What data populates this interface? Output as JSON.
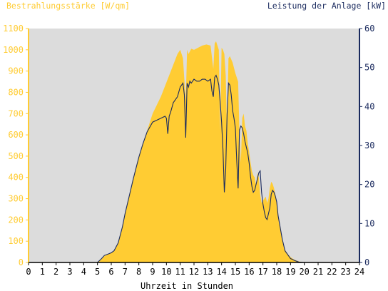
{
  "chart_data": {
    "type": "area",
    "left_axis_title": "Bestrahlungsstärke [W/qm]",
    "right_axis_title": "Leistung der Anlage [kW]",
    "xlabel": "Uhrzeit in Stunden",
    "xlim": [
      0,
      24
    ],
    "ylim_left": [
      0,
      1100
    ],
    "ylim_right": [
      0,
      60
    ],
    "x_ticks": [
      "0",
      "1",
      "2",
      "3",
      "4",
      "5",
      "6",
      "7",
      "8",
      "9",
      "10",
      "11",
      "12",
      "13",
      "14",
      "15",
      "16",
      "17",
      "18",
      "19",
      "20",
      "21",
      "22",
      "23",
      "24"
    ],
    "y_ticks_left": [
      "0",
      "100",
      "200",
      "300",
      "400",
      "500",
      "600",
      "700",
      "800",
      "900",
      "1000",
      "1100"
    ],
    "y_ticks_right": [
      "0",
      "10",
      "20",
      "30",
      "40",
      "50",
      "60"
    ],
    "grid": false,
    "colors": {
      "plot_background": "#dcdcdc",
      "irradiance_fill": "#ffcc33",
      "power_line": "#1a2a5e",
      "left_axis": "#ffcc33",
      "right_axis": "#1a2a5e"
    },
    "series": [
      {
        "axis": "left",
        "style": "area",
        "x": [
          0,
          5.0,
          5.3,
          5.5,
          5.8,
          6.0,
          6.2,
          6.5,
          6.8,
          7.0,
          7.3,
          7.6,
          8.0,
          8.3,
          8.6,
          9.0,
          9.3,
          9.6,
          9.9,
          10.2,
          10.5,
          10.8,
          11.0,
          11.2,
          11.4,
          11.5,
          11.6,
          11.8,
          12.0,
          12.3,
          12.6,
          12.9,
          13.2,
          13.4,
          13.5,
          13.6,
          13.7,
          13.8,
          13.9,
          14.0,
          14.1,
          14.2,
          14.3,
          14.4,
          14.5,
          14.6,
          14.8,
          15.0,
          15.2,
          15.3,
          15.4,
          15.5,
          15.6,
          15.7,
          15.8,
          15.9,
          16.0,
          16.1,
          16.2,
          16.3,
          16.4,
          16.5,
          16.6,
          16.7,
          16.8,
          16.9,
          17.0,
          17.1,
          17.2,
          17.3,
          17.4,
          17.5,
          17.6,
          17.7,
          17.8,
          17.9,
          18.0,
          18.1,
          18.2,
          18.3,
          18.4,
          18.5,
          18.6,
          18.8,
          19.0,
          19.3,
          19.6,
          20.0,
          20.3,
          20.5,
          24
        ],
        "values": [
          0,
          0,
          15,
          30,
          40,
          45,
          55,
          90,
          160,
          230,
          310,
          400,
          500,
          560,
          620,
          700,
          740,
          780,
          830,
          880,
          930,
          980,
          1000,
          960,
          760,
          1000,
          980,
          1005,
          1000,
          1010,
          1020,
          1025,
          1020,
          910,
          1030,
          1040,
          1020,
          1000,
          620,
          1010,
          1000,
          980,
          880,
          600,
          960,
          970,
          940,
          890,
          850,
          600,
          470,
          680,
          700,
          640,
          620,
          560,
          520,
          470,
          430,
          410,
          400,
          360,
          420,
          400,
          320,
          280,
          290,
          300,
          310,
          280,
          300,
          350,
          380,
          370,
          350,
          320,
          280,
          230,
          180,
          140,
          110,
          80,
          60,
          40,
          25,
          12,
          5,
          0,
          0,
          0,
          0
        ]
      },
      {
        "axis": "right",
        "style": "line",
        "x": [
          0,
          5.0,
          5.3,
          5.5,
          5.8,
          6.0,
          6.2,
          6.5,
          6.8,
          7.0,
          7.3,
          7.6,
          8.0,
          8.3,
          8.6,
          9.0,
          9.3,
          9.6,
          9.9,
          10.0,
          10.1,
          10.2,
          10.3,
          10.5,
          10.8,
          11.0,
          11.2,
          11.3,
          11.4,
          11.5,
          11.6,
          11.7,
          11.8,
          12.0,
          12.2,
          12.4,
          12.6,
          12.8,
          13.0,
          13.2,
          13.3,
          13.4,
          13.5,
          13.6,
          13.7,
          13.8,
          13.9,
          14.0,
          14.1,
          14.2,
          14.3,
          14.4,
          14.5,
          14.6,
          14.7,
          14.8,
          14.9,
          15.0,
          15.1,
          15.2,
          15.3,
          15.4,
          15.5,
          15.6,
          15.7,
          15.8,
          15.9,
          16.0,
          16.1,
          16.2,
          16.3,
          16.4,
          16.5,
          16.6,
          16.7,
          16.8,
          16.9,
          17.0,
          17.1,
          17.2,
          17.3,
          17.4,
          17.5,
          17.6,
          17.7,
          17.8,
          17.9,
          18.0,
          18.1,
          18.2,
          18.3,
          18.4,
          18.5,
          18.6,
          18.8,
          19.0,
          19.3,
          19.6,
          20.0,
          20.2,
          24
        ],
        "values": [
          0,
          0,
          1.0,
          1.8,
          2.2,
          2.5,
          3.0,
          5.0,
          9.0,
          12.5,
          17.0,
          21.5,
          27.0,
          30.5,
          33.5,
          36.0,
          36.5,
          37.0,
          37.5,
          37.0,
          33.0,
          37.5,
          38.5,
          41.0,
          42.5,
          45.0,
          46.0,
          43.0,
          32.0,
          46.0,
          45.0,
          46.5,
          46.0,
          47.0,
          46.5,
          46.5,
          47.0,
          47.0,
          46.5,
          47.0,
          44.0,
          42.5,
          47.5,
          48.0,
          47.0,
          45.5,
          41.0,
          36.0,
          29.0,
          18.0,
          24.0,
          38.0,
          46.0,
          45.5,
          43.0,
          39.0,
          37.0,
          34.5,
          26.0,
          19.0,
          34.0,
          35.0,
          34.5,
          33.0,
          31.0,
          29.5,
          28.0,
          25.5,
          22.0,
          19.5,
          18.0,
          18.5,
          20.0,
          21.5,
          23.0,
          23.5,
          18.0,
          15.0,
          13.0,
          11.5,
          11.0,
          12.5,
          14.0,
          17.5,
          18.5,
          18.0,
          17.0,
          15.5,
          12.0,
          10.0,
          8.0,
          6.0,
          4.5,
          3.0,
          2.0,
          1.0,
          0.5,
          0.1,
          0,
          0,
          0
        ]
      }
    ]
  }
}
